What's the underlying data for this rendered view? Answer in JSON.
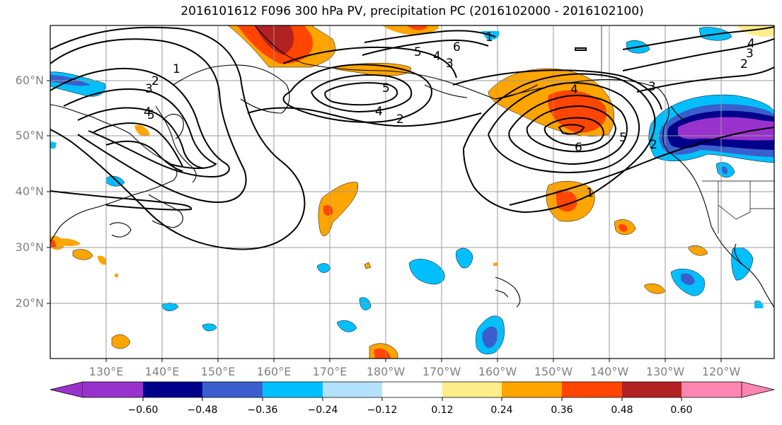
{
  "title": "2016101612 F096 300 hPa PV, precipitation PC (2016102000 - 2016102100)",
  "map": {
    "lat_labels": [
      "60°N",
      "50°N",
      "40°N",
      "30°N",
      "20°N"
    ],
    "lon_labels": [
      "130°E",
      "140°E",
      "150°E",
      "160°E",
      "170°E",
      "180°W",
      "170°W",
      "160°W",
      "150°W",
      "140°W",
      "130°W",
      "120°W"
    ],
    "pv_contour_labels": [
      "1",
      "2",
      "3",
      "4",
      "5",
      "6"
    ]
  },
  "colorbar": {
    "ticks": [
      "−0.60",
      "−0.48",
      "−0.36",
      "−0.24",
      "−0.12",
      "0.12",
      "0.24",
      "0.36",
      "0.48",
      "0.60"
    ],
    "colors": [
      "#9932cc",
      "#00008b",
      "#3a5fcd",
      "#00bfff",
      "#b2e2ff",
      "#ffffff",
      "#ffec8b",
      "#ffa500",
      "#ff4500",
      "#b22222",
      "#ff86b0"
    ]
  }
}
